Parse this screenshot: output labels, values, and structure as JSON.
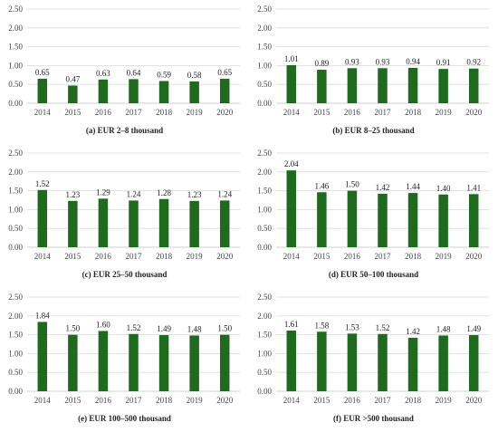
{
  "chart_data": [
    {
      "type": "bar",
      "caption": "(a) EUR 2–8 thousand",
      "categories": [
        "2014",
        "2015",
        "2016",
        "2017",
        "2018",
        "2019",
        "2020"
      ],
      "values": [
        0.65,
        0.47,
        0.63,
        0.64,
        0.59,
        0.58,
        0.65
      ],
      "data_labels": [
        "0.65",
        "0.47",
        "0.63",
        "0.64",
        "0.59",
        "0.58",
        "0.65"
      ],
      "ylim": [
        0,
        2.5
      ],
      "yticks": [
        "0.00",
        "0.50",
        "1.00",
        "1.50",
        "2.00",
        "2.50"
      ],
      "grid": true
    },
    {
      "type": "bar",
      "caption": "(b) EUR 8–25 thousand",
      "categories": [
        "2014",
        "2015",
        "2016",
        "2017",
        "2018",
        "2019",
        "2020"
      ],
      "values": [
        1.01,
        0.89,
        0.93,
        0.93,
        0.94,
        0.91,
        0.92
      ],
      "data_labels": [
        "1.01",
        "0.89",
        "0.93",
        "0.93",
        "0.94",
        "0.91",
        "0.92"
      ],
      "ylim": [
        0,
        2.5
      ],
      "yticks": [
        "0.00",
        "0.50",
        "1.00",
        "1.50",
        "2.00",
        "2.50"
      ],
      "grid": true
    },
    {
      "type": "bar",
      "caption": "(c) EUR 25–50 thousand",
      "categories": [
        "2014",
        "2015",
        "2016",
        "2017",
        "2018",
        "2019",
        "2020"
      ],
      "values": [
        1.52,
        1.23,
        1.29,
        1.24,
        1.28,
        1.23,
        1.24
      ],
      "data_labels": [
        "1.52",
        "1.23",
        "1.29",
        "1.24",
        "1.28",
        "1.23",
        "1.24"
      ],
      "ylim": [
        0,
        2.5
      ],
      "yticks": [
        "0.00",
        "0.50",
        "1.00",
        "1.50",
        "2.00",
        "2.50"
      ],
      "grid": true
    },
    {
      "type": "bar",
      "caption": "(d) EUR 50–100 thousand",
      "categories": [
        "2014",
        "2015",
        "2016",
        "2017",
        "2018",
        "2019",
        "2020"
      ],
      "values": [
        2.04,
        1.46,
        1.5,
        1.42,
        1.44,
        1.4,
        1.41
      ],
      "data_labels": [
        "2.04",
        "1.46",
        "1.50",
        "1.42",
        "1.44",
        "1.40",
        "1.41"
      ],
      "ylim": [
        0,
        2.5
      ],
      "yticks": [
        "0.00",
        "0.50",
        "1.00",
        "1.50",
        "2.00",
        "2.50"
      ],
      "grid": true
    },
    {
      "type": "bar",
      "caption": "(e) EUR 100–500 thousand",
      "categories": [
        "2014",
        "2015",
        "2016",
        "2017",
        "2018",
        "2019",
        "2020"
      ],
      "values": [
        1.84,
        1.5,
        1.6,
        1.52,
        1.49,
        1.48,
        1.5
      ],
      "data_labels": [
        "1.84",
        "1.50",
        "1.60",
        "1.52",
        "1.49",
        "1.48",
        "1.50"
      ],
      "ylim": [
        0,
        2.5
      ],
      "yticks": [
        "0.00",
        "0.50",
        "1.00",
        "1.50",
        "2.00",
        "2.50"
      ],
      "grid": true
    },
    {
      "type": "bar",
      "caption": "(f) EUR >500 thousand",
      "categories": [
        "2014",
        "2015",
        "2016",
        "2017",
        "2018",
        "2019",
        "2020"
      ],
      "values": [
        1.61,
        1.58,
        1.53,
        1.52,
        1.42,
        1.48,
        1.49
      ],
      "data_labels": [
        "1.61",
        "1.58",
        "1.53",
        "1.52",
        "1.42",
        "1.48",
        "1.49"
      ],
      "ylim": [
        0,
        2.5
      ],
      "yticks": [
        "0.00",
        "0.50",
        "1.00",
        "1.50",
        "2.00",
        "2.50"
      ],
      "grid": true
    }
  ],
  "colors": {
    "bar": "#1e6b1e",
    "grid": "#d9d9d9",
    "axis": "#bfbfbf"
  }
}
